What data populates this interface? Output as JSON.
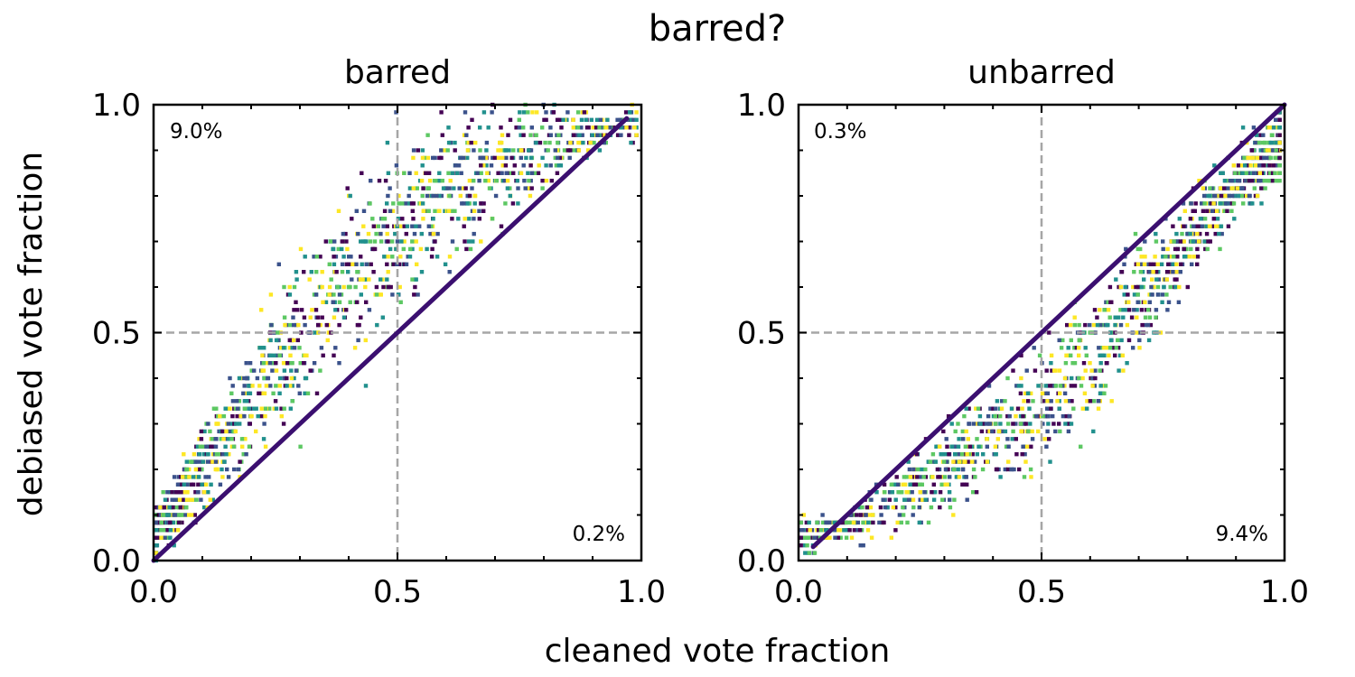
{
  "figure": {
    "suptitle": "barred?",
    "xlabel": "cleaned vote fraction",
    "ylabel": "debiased vote fraction",
    "reference_line_color": "#3b0f70",
    "guide_line_color": "#a6a6a6",
    "colormap": [
      "#440154",
      "#3b528b",
      "#21908d",
      "#5dc863",
      "#fde725"
    ]
  },
  "chart_data": [
    {
      "type": "scatter",
      "title": "barred",
      "xlabel": "cleaned vote fraction",
      "ylabel": "debiased vote fraction",
      "xlim": [
        0,
        1
      ],
      "ylim": [
        0,
        1
      ],
      "xticks": [
        "0.0",
        "0.5",
        "1.0"
      ],
      "yticks": [
        "0.0",
        "0.5",
        "1.0"
      ],
      "guide_lines": {
        "x": 0.5,
        "y": 0.5,
        "style": "dashed"
      },
      "annotations": {
        "top_left": "9.0%",
        "bottom_right": "0.2%"
      },
      "series": [
        {
          "name": "identity",
          "points": [
            [
              0.0,
              0.0
            ],
            [
              0.97,
              0.97
            ]
          ]
        },
        {
          "name": "scatter",
          "shape": "debiased above cleaned",
          "trend": [
            [
              0.0,
              0.05
            ],
            [
              0.1,
              0.2
            ],
            [
              0.2,
              0.36
            ],
            [
              0.3,
              0.5
            ],
            [
              0.4,
              0.62
            ],
            [
              0.5,
              0.72
            ],
            [
              0.6,
              0.8
            ],
            [
              0.7,
              0.86
            ],
            [
              0.8,
              0.91
            ],
            [
              0.9,
              0.94
            ],
            [
              1.0,
              0.96
            ]
          ]
        }
      ]
    },
    {
      "type": "scatter",
      "title": "unbarred",
      "xlabel": "cleaned vote fraction",
      "ylabel": "debiased vote fraction",
      "xlim": [
        0,
        1
      ],
      "ylim": [
        0,
        1
      ],
      "xticks": [
        "0.0",
        "0.5",
        "1.0"
      ],
      "yticks": [
        "0.0",
        "0.5",
        "1.0"
      ],
      "guide_lines": {
        "x": 0.5,
        "y": 0.5,
        "style": "dashed"
      },
      "annotations": {
        "top_left": "0.3%",
        "bottom_right": "9.4%"
      },
      "series": [
        {
          "name": "identity",
          "points": [
            [
              0.03,
              0.03
            ],
            [
              1.0,
              1.0
            ]
          ]
        },
        {
          "name": "scatter",
          "shape": "debiased below cleaned",
          "trend": [
            [
              0.0,
              0.05
            ],
            [
              0.1,
              0.08
            ],
            [
              0.2,
              0.13
            ],
            [
              0.3,
              0.2
            ],
            [
              0.4,
              0.27
            ],
            [
              0.5,
              0.34
            ],
            [
              0.6,
              0.44
            ],
            [
              0.7,
              0.57
            ],
            [
              0.8,
              0.7
            ],
            [
              0.9,
              0.82
            ],
            [
              1.0,
              0.92
            ]
          ]
        }
      ]
    }
  ]
}
